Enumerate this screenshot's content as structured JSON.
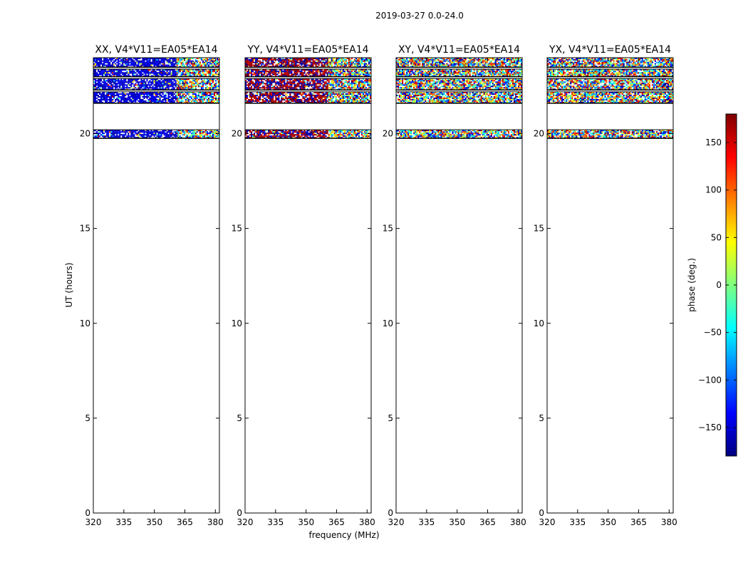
{
  "chart_data": {
    "type": "heatmap",
    "suptitle": "2019-03-27 0.0-24.0",
    "xlabel": "frequency (MHz)",
    "ylabel": "UT (hours)",
    "xlim": [
      320,
      382
    ],
    "ylim": [
      0,
      24
    ],
    "xticks": [
      320,
      335,
      350,
      365,
      380
    ],
    "yticks": [
      0,
      5,
      10,
      15,
      20
    ],
    "colorbar": {
      "label": "phase (deg.)",
      "range": [
        -180,
        180
      ],
      "ticks": [
        150,
        100,
        50,
        0,
        -50,
        -100,
        -150
      ],
      "colormap": "jet",
      "colors": [
        "#00007f",
        "#0000ff",
        "#007fff",
        "#00ffff",
        "#7fff7f",
        "#ffff00",
        "#ff7f00",
        "#ff0000",
        "#7f0000"
      ]
    },
    "data_blocks_ut_hours": [
      [
        23.5,
        24.0
      ],
      [
        23.0,
        23.4
      ],
      [
        22.3,
        22.9
      ],
      [
        21.6,
        22.2
      ],
      [
        19.75,
        20.2
      ]
    ],
    "panels": [
      {
        "title": "XX, V4*V11=EA05*EA14",
        "dominant_phase": "near -150 deg (blue) below 360 MHz, mixed above"
      },
      {
        "title": "YY, V4*V11=EA05*EA14",
        "dominant_phase": "mixed red/blue (near ±180 deg) below 360 MHz"
      },
      {
        "title": "XY, V4*V11=EA05*EA14",
        "dominant_phase": "random (noise)"
      },
      {
        "title": "YX, V4*V11=EA05*EA14",
        "dominant_phase": "random (noise)"
      }
    ]
  }
}
